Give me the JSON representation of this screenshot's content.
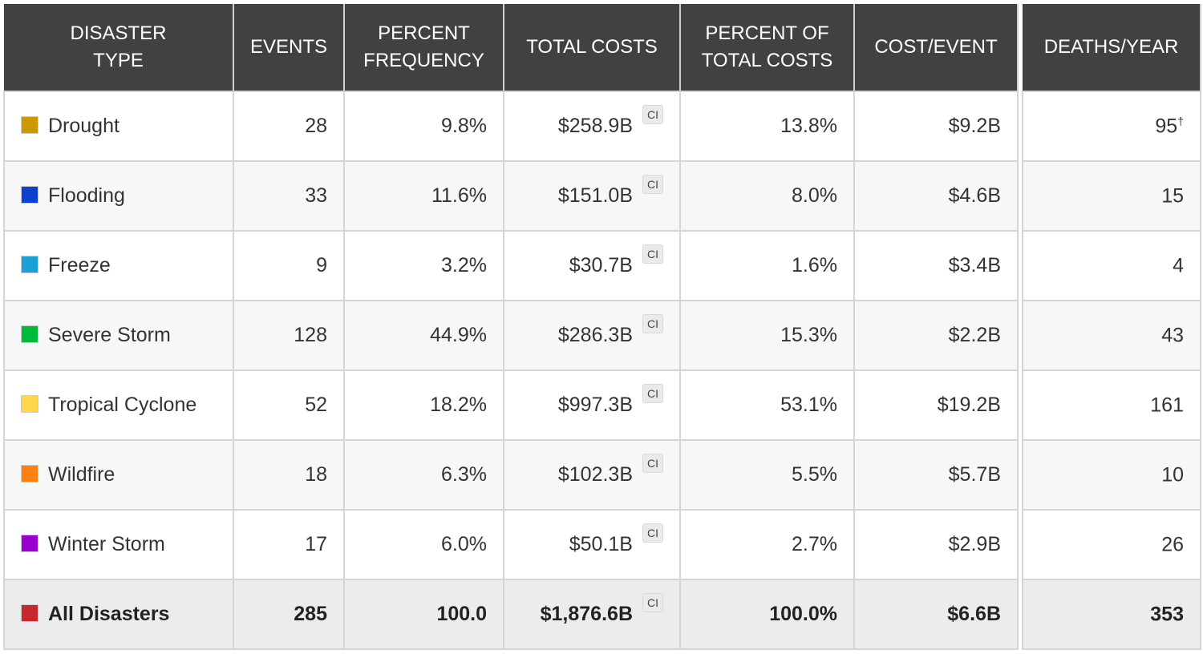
{
  "headers": [
    "DISASTER TYPE",
    "EVENTS",
    "PERCENT FREQUENCY",
    "TOTAL COSTS",
    "PERCENT OF TOTAL COSTS",
    "COST/EVENT",
    "DEATHS/YEAR"
  ],
  "ci_label": "CI",
  "rows": [
    {
      "type": "Drought",
      "color": "#cc9900",
      "events": "28",
      "freq": "9.8%",
      "cost": "$258.9B",
      "pct_cost": "13.8%",
      "per_event": "$9.2B",
      "deaths": "95",
      "deaths_note": "†"
    },
    {
      "type": "Flooding",
      "color": "#0b41cd",
      "events": "33",
      "freq": "11.6%",
      "cost": "$151.0B",
      "pct_cost": "8.0%",
      "per_event": "$4.6B",
      "deaths": "15"
    },
    {
      "type": "Freeze",
      "color": "#1a9fd6",
      "events": "9",
      "freq": "3.2%",
      "cost": "$30.7B",
      "pct_cost": "1.6%",
      "per_event": "$3.4B",
      "deaths": "4"
    },
    {
      "type": "Severe Storm",
      "color": "#00bb3a",
      "events": "128",
      "freq": "44.9%",
      "cost": "$286.3B",
      "pct_cost": "15.3%",
      "per_event": "$2.2B",
      "deaths": "43"
    },
    {
      "type": "Tropical Cyclone",
      "color": "#ffd54a",
      "events": "52",
      "freq": "18.2%",
      "cost": "$997.3B",
      "pct_cost": "53.1%",
      "per_event": "$19.2B",
      "deaths": "161"
    },
    {
      "type": "Wildfire",
      "color": "#ff8012",
      "events": "18",
      "freq": "6.3%",
      "cost": "$102.3B",
      "pct_cost": "5.5%",
      "per_event": "$5.7B",
      "deaths": "10"
    },
    {
      "type": "Winter Storm",
      "color": "#9a00d2",
      "events": "17",
      "freq": "6.0%",
      "cost": "$50.1B",
      "pct_cost": "2.7%",
      "per_event": "$2.9B",
      "deaths": "26"
    }
  ],
  "total": {
    "type": "All Disasters",
    "color": "#c6282b",
    "events": "285",
    "freq": "100.0",
    "cost": "$1,876.6B",
    "pct_cost": "100.0%",
    "per_event": "$6.6B",
    "deaths": "353"
  }
}
